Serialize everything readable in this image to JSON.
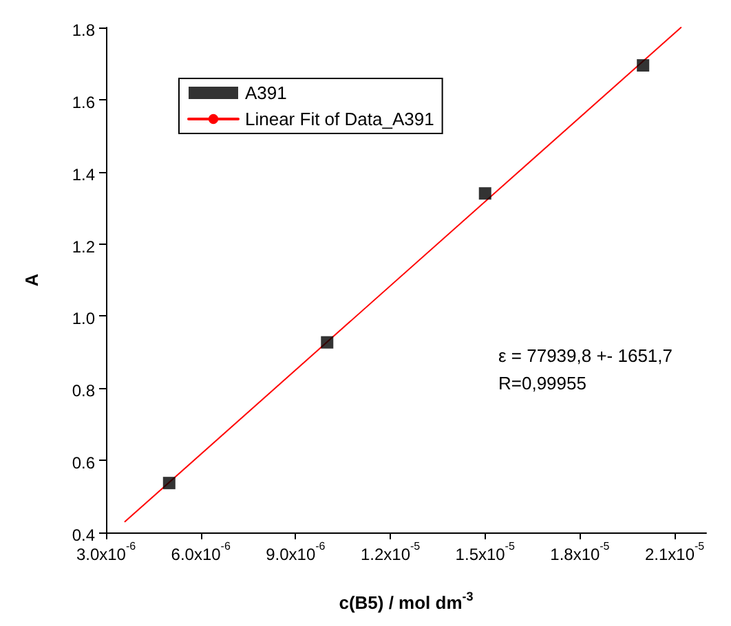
{
  "chart_data": {
    "type": "scatter",
    "xlabel": "c(B5) / mol dm$^{-3}$",
    "ylabel": "A",
    "xlim": [
      3e-06,
      2.2e-05
    ],
    "ylim": [
      0.4,
      1.8
    ],
    "xticks": [
      {
        "value": 3e-06,
        "label": "3.0x10$^{-6}$"
      },
      {
        "value": 6e-06,
        "label": "6.0x10$^{-6}$"
      },
      {
        "value": 9e-06,
        "label": "9.0x10$^{-6}$"
      },
      {
        "value": 1.2e-05,
        "label": "1.2x10$^{-5}$"
      },
      {
        "value": 1.5e-05,
        "label": "1.5x10$^{-5}$"
      },
      {
        "value": 1.8e-05,
        "label": "1.8x10$^{-5}$"
      },
      {
        "value": 2.1e-05,
        "label": "2.1x10$^{-5}$"
      }
    ],
    "yticks": [
      {
        "value": 0.4,
        "label": "0.4"
      },
      {
        "value": 0.6,
        "label": "0.6"
      },
      {
        "value": 0.8,
        "label": "0.8"
      },
      {
        "value": 1.0,
        "label": "1.0"
      },
      {
        "value": 1.2,
        "label": "1.2"
      },
      {
        "value": 1.4,
        "label": "1.4"
      },
      {
        "value": 1.6,
        "label": "1.6"
      },
      {
        "value": 1.8,
        "label": "1.8"
      }
    ],
    "series": [
      {
        "name": "A391",
        "color": "#000000",
        "marker": "square",
        "x": [
          5e-06,
          1e-05,
          1.5e-05,
          2e-05
        ],
        "values": [
          0.537,
          0.927,
          1.34,
          1.695
        ]
      },
      {
        "name": "Linear Fit of Data_A391",
        "type": "line",
        "color": "#ff0000",
        "marker": "none",
        "line_style": "solid",
        "x": [
          3.6e-06,
          2.12e-05
        ],
        "values": [
          0.43,
          1.8
        ]
      }
    ],
    "annotations": [
      {
        "text": "ε = 77939,8 +- 1651,7"
      },
      {
        "text": "R=0,99955"
      }
    ],
    "legend": "top left",
    "grid": false
  }
}
